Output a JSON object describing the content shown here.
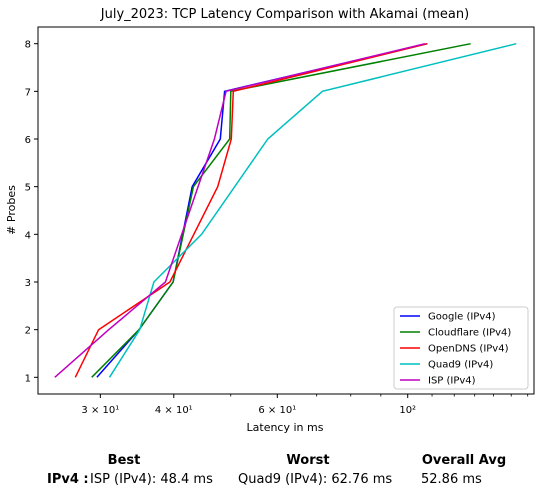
{
  "chart_data": {
    "type": "line",
    "title": "July_2023: TCP Latency Comparison with Akamai (mean)",
    "xlabel": "Latency in ms",
    "ylabel": "# Probes",
    "xscale": "log",
    "xlim": [
      23.5,
      164
    ],
    "ylim": [
      0.65,
      8.35
    ],
    "xticks": [
      {
        "value": 30,
        "label": "3 × 10¹"
      },
      {
        "value": 40,
        "label": "4 × 10¹"
      },
      {
        "value": 60,
        "label": "6 × 10¹"
      },
      {
        "value": 100,
        "label": "10²"
      }
    ],
    "yticks": [
      1,
      2,
      3,
      4,
      5,
      6,
      7,
      8
    ],
    "grid": false,
    "legend_position": "lower-right",
    "series": [
      {
        "name": "Google (IPv4)",
        "color": "#0000ff",
        "points": [
          [
            29.6,
            1
          ],
          [
            34.9,
            2
          ],
          [
            39.9,
            3
          ],
          [
            43.0,
            5
          ],
          [
            48.0,
            6
          ],
          [
            48.8,
            7
          ],
          [
            108,
            8
          ]
        ]
      },
      {
        "name": "Cloudflare (IPv4)",
        "color": "#008000",
        "points": [
          [
            29.0,
            1
          ],
          [
            34.9,
            2
          ],
          [
            39.9,
            3
          ],
          [
            43.2,
            5
          ],
          [
            49.8,
            6
          ],
          [
            50.0,
            7
          ],
          [
            128,
            8
          ]
        ]
      },
      {
        "name": "OpenDNS (IPv4)",
        "color": "#ff0000",
        "points": [
          [
            27.2,
            1
          ],
          [
            29.8,
            2
          ],
          [
            39.4,
            3
          ],
          [
            47.5,
            5
          ],
          [
            50.1,
            6
          ],
          [
            50.5,
            7
          ],
          [
            108,
            8
          ]
        ]
      },
      {
        "name": "Quad9 (IPv4)",
        "color": "#00bfbf",
        "points": [
          [
            31.1,
            1
          ],
          [
            35.0,
            2
          ],
          [
            37.0,
            3
          ],
          [
            44.6,
            4
          ],
          [
            57.8,
            6
          ],
          [
            71.6,
            7
          ],
          [
            153,
            8
          ]
        ]
      },
      {
        "name": "ISP (IPv4)",
        "color": "#bf00bf",
        "points": [
          [
            25.1,
            1
          ],
          [
            31.0,
            2
          ],
          [
            38.7,
            3
          ],
          [
            46.9,
            6
          ],
          [
            49.1,
            7
          ],
          [
            107,
            8
          ]
        ]
      }
    ]
  },
  "summary": {
    "best_header": "Best",
    "worst_header": "Worst",
    "avg_header": "Overall Avg",
    "row_label": "IPv4 :",
    "best_value": "ISP (IPv4): 48.4 ms",
    "worst_value": "Quad9 (IPv4): 62.76 ms",
    "avg_value": "52.86 ms"
  }
}
